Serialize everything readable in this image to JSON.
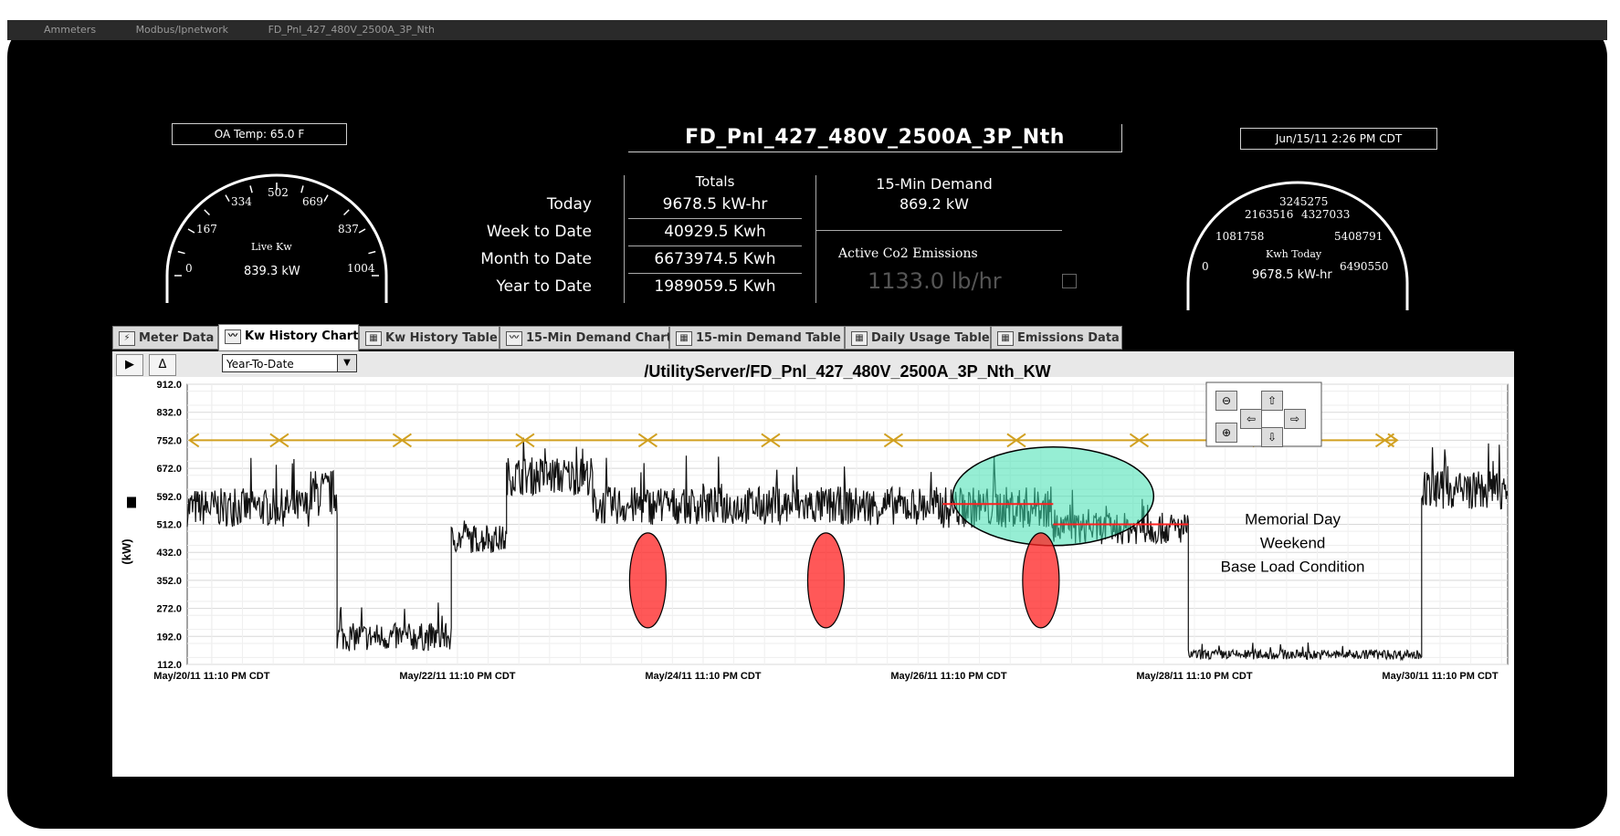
{
  "window": {
    "top_strip": [
      "Ammeters",
      "Modbus/Ipnetwork",
      "FD_Pnl_427_480V_2500A_3P_Nth"
    ]
  },
  "header": {
    "oa_temp": "OA Temp: 65.0 F",
    "panel_title": "FD_Pnl_427_480V_2500A_3P_Nth",
    "datetime": "Jun/15/11 2:26 PM CDT"
  },
  "live_gauge": {
    "title": "Live Kw",
    "value": "839.3 kW",
    "ticks": [
      "0",
      "167",
      "334",
      "502",
      "669",
      "837",
      "1004"
    ],
    "level": 0.836
  },
  "kwh_gauge": {
    "title": "Kwh Today",
    "value": "9678.5 kW-hr",
    "ticks": [
      "0",
      "1081758",
      "2163516",
      "3245275",
      "4327033",
      "5408791",
      "6490550"
    ]
  },
  "totals": {
    "header": "Totals",
    "rows": [
      {
        "label": "Today",
        "value": "9678.5 kW-hr"
      },
      {
        "label": "Week to Date",
        "value": "40929.5 Kwh"
      },
      {
        "label": "Month to Date",
        "value": "6673974.5 Kwh"
      },
      {
        "label": "Year to Date",
        "value": "1989059.5 Kwh"
      }
    ],
    "demand_header": "15-Min Demand",
    "demand_value": "869.2 kW",
    "co2_header": "Active Co2 Emissions",
    "co2_value": "1133.0 lb/hr"
  },
  "tabs": [
    {
      "label": "Meter Data",
      "icon": "lightning-icon"
    },
    {
      "label": "Kw History Chart",
      "icon": "line-chart-icon",
      "active": true
    },
    {
      "label": "Kw History Table",
      "icon": "table-icon"
    },
    {
      "label": "15-Min Demand Chart",
      "icon": "line-chart-icon"
    },
    {
      "label": "15-min Demand Table",
      "icon": "table-icon"
    },
    {
      "label": "Daily Usage Table",
      "icon": "table-icon"
    },
    {
      "label": "Emissions Data",
      "icon": "table-icon"
    }
  ],
  "toolbar": {
    "play_label": "▶",
    "delta_label": "Δ",
    "range_value": "Year-To-Date"
  },
  "chart_data": {
    "type": "line",
    "title": "/UtilityServer/FD_Pnl_427_480V_2500A_3P_Nth_KW",
    "ylabel": "(kW)",
    "ylim": [
      112,
      912
    ],
    "yticks": [
      "912.0",
      "832.0",
      "752.0",
      "672.0",
      "592.0",
      "512.0",
      "432.0",
      "352.0",
      "272.0",
      "192.0",
      "112.0"
    ],
    "xticks": [
      "May/20/11 11:10 PM CDT",
      "May/22/11 11:10 PM CDT",
      "May/24/11 11:10 PM CDT",
      "May/26/11 11:10 PM CDT",
      "May/28/11 11:10 PM CDT",
      "May/30/11 11:10 PM CDT"
    ],
    "x_days": [
      0,
      2,
      4,
      6,
      8,
      10
    ],
    "xlim": [
      -0.2,
      10.55
    ],
    "grid": true,
    "segments": [
      {
        "from": -0.2,
        "to": 0.8,
        "level": 560,
        "amp": 55
      },
      {
        "from": 0.8,
        "to": 1.02,
        "level": 600,
        "amp": 70
      },
      {
        "from": 1.02,
        "to": 1.95,
        "level": 190,
        "amp": 40
      },
      {
        "from": 1.95,
        "to": 2.4,
        "level": 470,
        "amp": 40
      },
      {
        "from": 2.4,
        "to": 3.1,
        "level": 650,
        "amp": 55
      },
      {
        "from": 3.1,
        "to": 5.9,
        "level": 565,
        "amp": 55
      },
      {
        "from": 5.9,
        "to": 6.85,
        "level": 560,
        "amp": 60
      },
      {
        "from": 6.85,
        "to": 7.95,
        "level": 500,
        "amp": 45
      },
      {
        "from": 7.95,
        "to": 9.85,
        "level": 140,
        "amp": 14
      },
      {
        "from": 9.85,
        "to": 10.55,
        "level": 610,
        "amp": 55
      }
    ],
    "annotation": {
      "lines": [
        "Memorial Day",
        "Weekend",
        "Base Load Condition"
      ]
    }
  },
  "colors": {
    "arrow": "#d1a020",
    "highlight": "#3fe0b0",
    "marker": "#ff2020",
    "baseload": "#ff2020"
  }
}
